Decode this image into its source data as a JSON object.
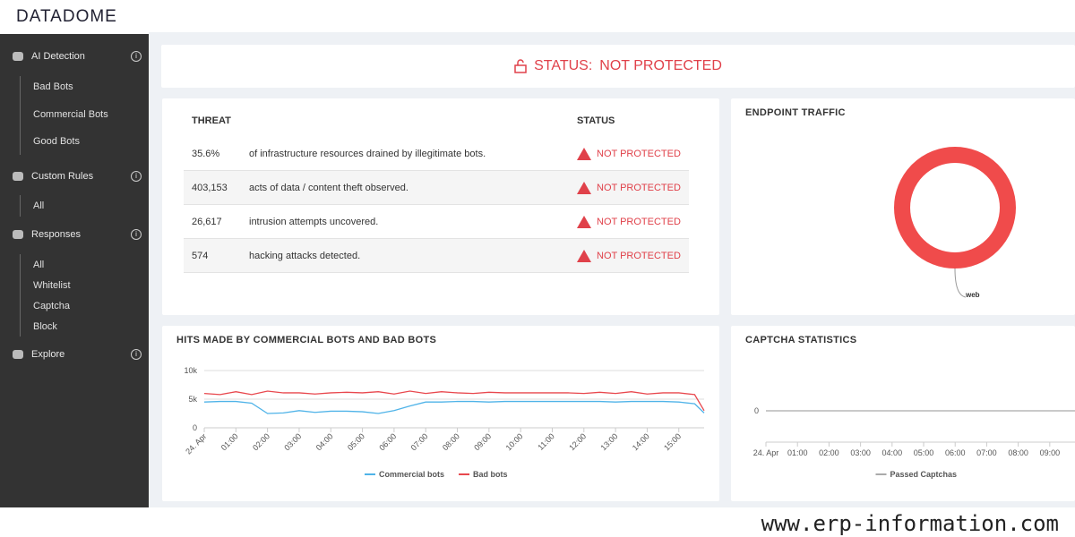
{
  "logo": "DATADOME",
  "sidebar": {
    "sections": [
      {
        "label": "AI Detection",
        "items": [
          "Bad Bots",
          "Commercial Bots",
          "Good Bots"
        ]
      },
      {
        "label": "Custom Rules",
        "items": [
          "All"
        ]
      },
      {
        "label": "Responses",
        "items": [
          "All",
          "Whitelist",
          "Captcha",
          "Block"
        ]
      },
      {
        "label": "Explore",
        "items": []
      }
    ]
  },
  "status": {
    "label": "STATUS:",
    "value": "NOT PROTECTED"
  },
  "table": {
    "headers": [
      "THREAT",
      "STATUS"
    ],
    "rows": [
      {
        "value": "35.6%",
        "text": "of infrastructure resources drained by illegitimate bots.",
        "status": "NOT PROTECTED"
      },
      {
        "value": "403,153",
        "text": "acts of data / content theft observed.",
        "status": "NOT PROTECTED"
      },
      {
        "value": "26,617",
        "text": "intrusion attempts uncovered.",
        "status": "NOT PROTECTED"
      },
      {
        "value": "574",
        "text": "hacking attacks detected.",
        "status": "NOT PROTECTED"
      }
    ]
  },
  "endpoint": {
    "title": "ENDPOINT TRAFFIC",
    "chart_data": {
      "type": "pie",
      "categories": [
        "web"
      ],
      "values": [
        100
      ],
      "color": "#f04b4b"
    }
  },
  "hits": {
    "title": "HITS MADE BY COMMERCIAL BOTS AND BAD BOTS",
    "chart_data": {
      "type": "line",
      "x": [
        0,
        0.5,
        1,
        1.5,
        2,
        2.5,
        3,
        3.5,
        4,
        4.5,
        5,
        5.5,
        6,
        6.5,
        7,
        7.5,
        8,
        8.5,
        9,
        9.5,
        10,
        10.5,
        11,
        11.5,
        12,
        12.5,
        13,
        13.5,
        14,
        14.5,
        15,
        15.5,
        15.8
      ],
      "xlim": [
        0,
        15.8
      ],
      "xticks": [
        {
          "value": 0,
          "label": "24. Apr"
        },
        {
          "value": 1,
          "label": "01:00"
        },
        {
          "value": 2,
          "label": "02:00"
        },
        {
          "value": 3,
          "label": "03:00"
        },
        {
          "value": 4,
          "label": "04:00"
        },
        {
          "value": 5,
          "label": "05:00"
        },
        {
          "value": 6,
          "label": "06:00"
        },
        {
          "value": 7,
          "label": "07:00"
        },
        {
          "value": 8,
          "label": "08:00"
        },
        {
          "value": 9,
          "label": "09:00"
        },
        {
          "value": 10,
          "label": "10:00"
        },
        {
          "value": 11,
          "label": "11:00"
        },
        {
          "value": 12,
          "label": "12:00"
        },
        {
          "value": 13,
          "label": "13:00"
        },
        {
          "value": 14,
          "label": "14:00"
        },
        {
          "value": 15,
          "label": "15:00"
        }
      ],
      "ylim": [
        0,
        10000
      ],
      "yticks": [
        0,
        {
          "value": 5000,
          "label": "5k"
        },
        {
          "value": 10000,
          "label": "10k"
        }
      ],
      "grid": true,
      "series": [
        {
          "name": "Commercial bots",
          "color": "#4fb3e8",
          "values": [
            4500,
            4600,
            4600,
            4300,
            2500,
            2600,
            3000,
            2700,
            2900,
            2900,
            2800,
            2500,
            3000,
            3800,
            4500,
            4500,
            4600,
            4600,
            4500,
            4600,
            4600,
            4600,
            4600,
            4600,
            4600,
            4600,
            4500,
            4600,
            4600,
            4600,
            4500,
            4200,
            2600
          ]
        },
        {
          "name": "Bad bots",
          "color": "#e8484e",
          "values": [
            6000,
            5800,
            6300,
            5800,
            6400,
            6100,
            6100,
            5900,
            6100,
            6200,
            6100,
            6300,
            5900,
            6400,
            6000,
            6300,
            6100,
            6000,
            6200,
            6100,
            6100,
            6100,
            6100,
            6100,
            6000,
            6200,
            6000,
            6300,
            5900,
            6100,
            6100,
            5800,
            3000
          ]
        }
      ]
    }
  },
  "captcha": {
    "title": "CAPTCHA STATISTICS",
    "chart_data": {
      "type": "line",
      "x": [
        0,
        9.8
      ],
      "xlim": [
        0,
        9.8
      ],
      "xticks": [
        {
          "value": 0,
          "label": "24. Apr"
        },
        {
          "value": 1,
          "label": "01:00"
        },
        {
          "value": 2,
          "label": "02:00"
        },
        {
          "value": 3,
          "label": "03:00"
        },
        {
          "value": 4,
          "label": "04:00"
        },
        {
          "value": 5,
          "label": "05:00"
        },
        {
          "value": 6,
          "label": "06:00"
        },
        {
          "value": 7,
          "label": "07:00"
        },
        {
          "value": 8,
          "label": "08:00"
        },
        {
          "value": 9,
          "label": "09:00"
        }
      ],
      "yticks": [
        0
      ],
      "series": [
        {
          "name": "Passed Captchas",
          "color": "#aaaaaa",
          "values": [
            0,
            0
          ]
        }
      ]
    }
  },
  "watermark": "www.erp-information.com"
}
